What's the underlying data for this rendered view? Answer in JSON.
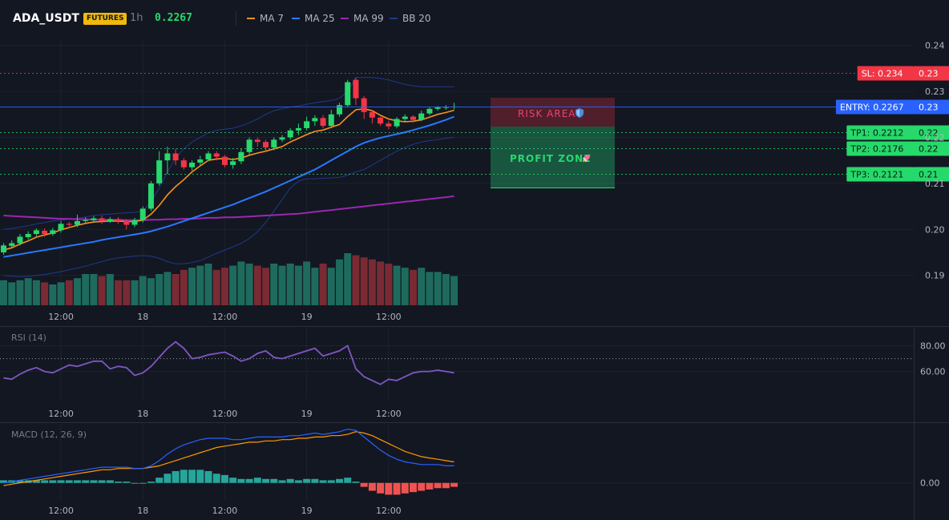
{
  "header": {
    "symbol": "ADA_USDT",
    "badge": "FUTURES",
    "timeframe": "1h",
    "price": "0.2267",
    "legend": [
      {
        "label": "MA 7",
        "color": "#f7931a"
      },
      {
        "label": "MA 25",
        "color": "#2979ff"
      },
      {
        "label": "MA 99",
        "color": "#9c27b0"
      },
      {
        "label": "BB 20",
        "color": "#1e3a8a"
      }
    ]
  },
  "colors": {
    "up": "#26d96b",
    "down": "#f23645",
    "bg": "#131722",
    "grid": "#1e222d",
    "vol_up": "#1e6b5e",
    "vol_down": "#7a2a33"
  },
  "annotations": {
    "risk_area": "RISK AREA",
    "profit_zone": "PROFIT ZONE",
    "risk_icon": "shield-icon",
    "profit_icon": "rocket-icon"
  },
  "chart_data": [
    {
      "type": "candlestick",
      "name": "price",
      "time_labels": [
        "12:00",
        "18",
        "12:00",
        "19",
        "12:00"
      ],
      "time_index": [
        7,
        17,
        27,
        37,
        47
      ],
      "ylim": [
        0.1835,
        0.2415
      ],
      "ticks": [
        0.19,
        0.2,
        0.21,
        0.22,
        0.23,
        0.24
      ],
      "tick_labels": [
        "0.19",
        "0.20",
        "0.21",
        "0.22",
        "0.23",
        "0.24"
      ],
      "candles": [
        [
          0.195,
          0.1965,
          0.1945,
          0.197
        ],
        [
          0.1964,
          0.197,
          0.1958,
          0.1976
        ],
        [
          0.197,
          0.1984,
          0.1965,
          0.199
        ],
        [
          0.1983,
          0.199,
          0.1978,
          0.1996
        ],
        [
          0.199,
          0.1998,
          0.1985,
          0.2002
        ],
        [
          0.1997,
          0.199,
          0.1984,
          0.2002
        ],
        [
          0.199,
          0.1998,
          0.1986,
          0.2003
        ],
        [
          0.1998,
          0.2012,
          0.1993,
          0.2018
        ],
        [
          0.2012,
          0.201,
          0.2003,
          0.2016
        ],
        [
          0.201,
          0.2018,
          0.2005,
          0.2032
        ],
        [
          0.2018,
          0.202,
          0.2012,
          0.2026
        ],
        [
          0.202,
          0.2024,
          0.2014,
          0.2029
        ],
        [
          0.2024,
          0.2018,
          0.2012,
          0.203
        ],
        [
          0.2018,
          0.2022,
          0.2014,
          0.2027
        ],
        [
          0.2022,
          0.2018,
          0.2012,
          0.2027
        ],
        [
          0.2018,
          0.201,
          0.2,
          0.2022
        ],
        [
          0.201,
          0.202,
          0.2005,
          0.2025
        ],
        [
          0.202,
          0.2045,
          0.2015,
          0.205
        ],
        [
          0.2045,
          0.21,
          0.204,
          0.2105
        ],
        [
          0.21,
          0.215,
          0.2095,
          0.217
        ],
        [
          0.215,
          0.2165,
          0.212,
          0.218
        ],
        [
          0.2165,
          0.215,
          0.214,
          0.2175
        ],
        [
          0.215,
          0.2135,
          0.213,
          0.2155
        ],
        [
          0.2135,
          0.2145,
          0.2128,
          0.215
        ],
        [
          0.2145,
          0.2152,
          0.214,
          0.216
        ],
        [
          0.2152,
          0.2165,
          0.2148,
          0.217
        ],
        [
          0.2165,
          0.2158,
          0.215,
          0.217
        ],
        [
          0.2158,
          0.214,
          0.2135,
          0.2162
        ],
        [
          0.214,
          0.2148,
          0.2132,
          0.2155
        ],
        [
          0.2148,
          0.2168,
          0.2142,
          0.2175
        ],
        [
          0.2168,
          0.2195,
          0.2162,
          0.22
        ],
        [
          0.2195,
          0.219,
          0.218,
          0.22
        ],
        [
          0.219,
          0.2178,
          0.217,
          0.2195
        ],
        [
          0.2178,
          0.2195,
          0.2172,
          0.22
        ],
        [
          0.2195,
          0.22,
          0.219,
          0.2205
        ],
        [
          0.22,
          0.2215,
          0.2195,
          0.222
        ],
        [
          0.2215,
          0.222,
          0.2205,
          0.223
        ],
        [
          0.222,
          0.2235,
          0.2215,
          0.2245
        ],
        [
          0.2235,
          0.2242,
          0.2225,
          0.2248
        ],
        [
          0.2242,
          0.2225,
          0.222,
          0.2248
        ],
        [
          0.2225,
          0.225,
          0.222,
          0.226
        ],
        [
          0.225,
          0.227,
          0.2245,
          0.2275
        ],
        [
          0.227,
          0.232,
          0.2265,
          0.2325
        ],
        [
          0.2325,
          0.2285,
          0.227,
          0.233
        ],
        [
          0.2285,
          0.2255,
          0.224,
          0.229
        ],
        [
          0.2255,
          0.2243,
          0.223,
          0.226
        ],
        [
          0.2243,
          0.223,
          0.2225,
          0.2245
        ],
        [
          0.223,
          0.2224,
          0.2218,
          0.2236
        ],
        [
          0.2224,
          0.224,
          0.222,
          0.2244
        ],
        [
          0.224,
          0.2245,
          0.2235,
          0.225
        ],
        [
          0.2245,
          0.2238,
          0.2232,
          0.2248
        ],
        [
          0.2238,
          0.2252,
          0.2235,
          0.2258
        ],
        [
          0.2252,
          0.2262,
          0.2248,
          0.2265
        ],
        [
          0.2262,
          0.2265,
          0.2258,
          0.2268
        ],
        [
          0.2265,
          0.2266,
          0.226,
          0.227
        ],
        [
          0.2266,
          0.2267,
          0.2261,
          0.2275
        ]
      ],
      "ma7": [
        0.1955,
        0.196,
        0.1968,
        0.1975,
        0.1983,
        0.1988,
        0.1992,
        0.1999,
        0.2004,
        0.2009,
        0.2013,
        0.2016,
        0.2017,
        0.2018,
        0.2018,
        0.2017,
        0.2017,
        0.202,
        0.2033,
        0.2052,
        0.2075,
        0.2093,
        0.2108,
        0.2125,
        0.2138,
        0.215,
        0.2153,
        0.2154,
        0.2152,
        0.2155,
        0.2161,
        0.2166,
        0.217,
        0.2175,
        0.218,
        0.219,
        0.2198,
        0.2206,
        0.2213,
        0.2216,
        0.2222,
        0.2228,
        0.2245,
        0.226,
        0.2262,
        0.2258,
        0.2248,
        0.224,
        0.2236,
        0.2234,
        0.2235,
        0.2238,
        0.2244,
        0.225,
        0.2254,
        0.2259
      ],
      "ma25": [
        0.194,
        0.1943,
        0.1946,
        0.1949,
        0.1952,
        0.1955,
        0.1958,
        0.1961,
        0.1964,
        0.1967,
        0.197,
        0.1973,
        0.1977,
        0.198,
        0.1983,
        0.1986,
        0.1989,
        0.1992,
        0.1996,
        0.2001,
        0.2006,
        0.2012,
        0.2018,
        0.2024,
        0.203,
        0.2036,
        0.2042,
        0.2048,
        0.2054,
        0.2061,
        0.2068,
        0.2075,
        0.2082,
        0.209,
        0.2098,
        0.2106,
        0.2114,
        0.2122,
        0.213,
        0.214,
        0.215,
        0.216,
        0.217,
        0.218,
        0.2188,
        0.2194,
        0.2199,
        0.2203,
        0.2207,
        0.2211,
        0.2216,
        0.2221,
        0.2226,
        0.2232,
        0.2238,
        0.2245
      ],
      "ma99": [
        0.203,
        0.2029,
        0.2028,
        0.2027,
        0.2026,
        0.2025,
        0.2024,
        0.2023,
        0.2023,
        0.2022,
        0.2022,
        0.2021,
        0.2021,
        0.2021,
        0.2021,
        0.202,
        0.202,
        0.202,
        0.2021,
        0.2021,
        0.2022,
        0.2022,
        0.2023,
        0.2023,
        0.2024,
        0.2025,
        0.2025,
        0.2026,
        0.2026,
        0.2027,
        0.2028,
        0.2029,
        0.203,
        0.2031,
        0.2032,
        0.2033,
        0.2034,
        0.2036,
        0.2038,
        0.204,
        0.2042,
        0.2044,
        0.2046,
        0.2048,
        0.205,
        0.2052,
        0.2054,
        0.2056,
        0.2058,
        0.206,
        0.2062,
        0.2064,
        0.2066,
        0.2068,
        0.207,
        0.2072
      ],
      "bb_upper": [
        0.2,
        0.2002,
        0.2005,
        0.2008,
        0.2012,
        0.2015,
        0.2018,
        0.202,
        0.2022,
        0.2024,
        0.2027,
        0.203,
        0.2032,
        0.2033,
        0.2035,
        0.2036,
        0.2037,
        0.204,
        0.206,
        0.209,
        0.2125,
        0.2155,
        0.2175,
        0.219,
        0.22,
        0.221,
        0.2215,
        0.2218,
        0.222,
        0.2225,
        0.2232,
        0.224,
        0.225,
        0.2258,
        0.2262,
        0.2266,
        0.2268,
        0.2272,
        0.2275,
        0.2278,
        0.228,
        0.2285,
        0.23,
        0.233,
        0.233,
        0.233,
        0.2328,
        0.2325,
        0.232,
        0.2315,
        0.2312,
        0.231,
        0.231,
        0.231,
        0.231,
        0.231
      ],
      "bb_lower": [
        0.19,
        0.1898,
        0.1897,
        0.1898,
        0.19,
        0.1902,
        0.1905,
        0.1908,
        0.1912,
        0.1916,
        0.192,
        0.1925,
        0.193,
        0.1935,
        0.1938,
        0.194,
        0.1942,
        0.1943,
        0.1942,
        0.1937,
        0.193,
        0.1925,
        0.1925,
        0.1928,
        0.1932,
        0.194,
        0.1948,
        0.1955,
        0.1962,
        0.197,
        0.198,
        0.1995,
        0.2015,
        0.204,
        0.2065,
        0.209,
        0.2105,
        0.211,
        0.211,
        0.2111,
        0.2112,
        0.2113,
        0.2118,
        0.2125,
        0.213,
        0.214,
        0.215,
        0.216,
        0.217,
        0.2178,
        0.2185,
        0.219,
        0.2193,
        0.2195,
        0.2198,
        0.22
      ],
      "volume": [
        12,
        11,
        12,
        13,
        12,
        11,
        10,
        11,
        12,
        13,
        15,
        15,
        14,
        15,
        12,
        12,
        12,
        14,
        13,
        15,
        16,
        15,
        17,
        18,
        19,
        20,
        17,
        18,
        19,
        21,
        20,
        19,
        18,
        20,
        19,
        20,
        19,
        21,
        18,
        20,
        18,
        22,
        25,
        24,
        23,
        22,
        21,
        20,
        19,
        18,
        17,
        18,
        16,
        16,
        15,
        14
      ],
      "levels": [
        {
          "name": "SL",
          "label": "SL: 0.234",
          "value": 0.234,
          "axis_label": "0.23",
          "color": "#f23645"
        },
        {
          "name": "ENTRY",
          "label": "ENTRY: 0.2267",
          "value": 0.2267,
          "axis_label": "0.23",
          "color": "#2962ff"
        },
        {
          "name": "TP1",
          "label": "TP1: 0.2212",
          "value": 0.2212,
          "axis_label": "0.22",
          "color": "#26d96b"
        },
        {
          "name": "TP2",
          "label": "TP2: 0.2176",
          "value": 0.2176,
          "axis_label": "0.22",
          "color": "#26d96b"
        },
        {
          "name": "TP3",
          "label": "TP3: 0.2121",
          "value": 0.2121,
          "axis_label": "0.21",
          "color": "#26d96b"
        }
      ]
    },
    {
      "type": "line",
      "title": "RSI (14)",
      "ylim": [
        38,
        94
      ],
      "ticks": [
        60,
        80
      ],
      "tick_labels": [
        "60.00",
        "80.00"
      ],
      "reference_line": 70,
      "time_labels": [
        "12:00",
        "18",
        "12:00",
        "19",
        "12:00"
      ],
      "values": [
        55,
        54,
        58,
        61,
        63,
        60,
        59,
        62,
        65,
        64,
        66,
        68,
        68,
        62,
        64,
        63,
        57,
        59,
        64,
        71,
        78,
        83,
        78,
        70,
        71,
        73,
        74,
        75,
        72,
        68,
        70,
        74,
        76,
        71,
        70,
        72,
        74,
        76,
        78,
        72,
        74,
        76,
        80,
        62,
        56,
        53,
        50,
        54,
        53,
        56,
        59,
        60,
        60,
        61,
        60,
        59
      ]
    },
    {
      "type": "line",
      "title": "MACD (12, 26, 9)",
      "ylim": [
        -0.0013,
        0.0045
      ],
      "ticks": [
        0
      ],
      "tick_labels": [
        "0.00"
      ],
      "time_labels": [
        "12:00",
        "18",
        "12:00",
        "19",
        "12:00"
      ],
      "series": [
        {
          "values": [
            0.0,
            0.0001,
            0.0002,
            0.0003,
            0.0004,
            0.0005,
            0.0006,
            0.0007,
            0.0008,
            0.0009,
            0.001,
            0.0011,
            0.0012,
            0.0012,
            0.0012,
            0.0012,
            0.0011,
            0.0011,
            0.0013,
            0.0017,
            0.0022,
            0.0026,
            0.0029,
            0.0031,
            0.0033,
            0.0034,
            0.0034,
            0.0034,
            0.0033,
            0.0033,
            0.0034,
            0.0035,
            0.0035,
            0.0035,
            0.0035,
            0.0036,
            0.0036,
            0.0037,
            0.0038,
            0.0037,
            0.0038,
            0.0039,
            0.0041,
            0.004,
            0.0035,
            0.003,
            0.0025,
            0.0021,
            0.0018,
            0.0016,
            0.0015,
            0.0014,
            0.0014,
            0.0014,
            0.0013,
            0.0013
          ]
        },
        {
          "values": [
            -0.0002,
            -0.0001,
            0.0,
            0.0001,
            0.0002,
            0.0003,
            0.0004,
            0.0005,
            0.0006,
            0.0007,
            0.0008,
            0.0009,
            0.001,
            0.001,
            0.0011,
            0.0011,
            0.0011,
            0.0011,
            0.0012,
            0.0013,
            0.0015,
            0.0017,
            0.0019,
            0.0021,
            0.0023,
            0.0025,
            0.0027,
            0.0028,
            0.0029,
            0.003,
            0.0031,
            0.0031,
            0.0032,
            0.0032,
            0.0033,
            0.0033,
            0.0034,
            0.0034,
            0.0035,
            0.0035,
            0.0036,
            0.0036,
            0.0037,
            0.0039,
            0.0038,
            0.0036,
            0.0033,
            0.003,
            0.0027,
            0.0024,
            0.0022,
            0.002,
            0.0019,
            0.0018,
            0.0017,
            0.0016
          ]
        },
        {
          "values": [
            0.0002,
            0.0002,
            0.0002,
            0.0002,
            0.0002,
            0.0002,
            0.0002,
            0.0002,
            0.0002,
            0.0002,
            0.0002,
            0.0002,
            0.0002,
            0.0002,
            0.0001,
            0.0001,
            0.0,
            0.0,
            0.0001,
            0.0004,
            0.0007,
            0.0009,
            0.001,
            0.001,
            0.001,
            0.0009,
            0.0007,
            0.0006,
            0.0004,
            0.0003,
            0.0003,
            0.0004,
            0.0003,
            0.0003,
            0.0002,
            0.0003,
            0.0002,
            0.0003,
            0.0003,
            0.0002,
            0.0002,
            0.0003,
            0.0004,
            0.0001,
            -0.0003,
            -0.0006,
            -0.0008,
            -0.0009,
            -0.0009,
            -0.0008,
            -0.0007,
            -0.0006,
            -0.0005,
            -0.0004,
            -0.0004,
            -0.0003
          ]
        }
      ]
    }
  ]
}
